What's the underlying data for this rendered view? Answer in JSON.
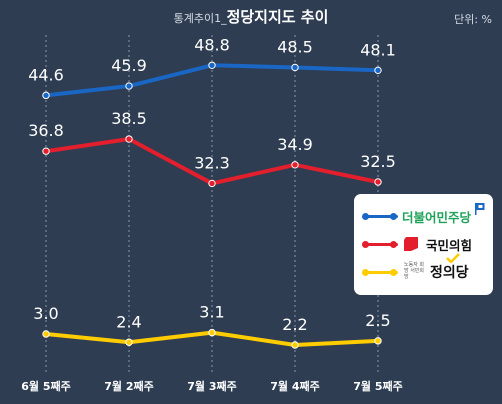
{
  "title_prefix": "통계추이1_",
  "title": "정당지지도 추이",
  "unit_label": "단위: %",
  "chart_data": {
    "type": "line",
    "categories": [
      "6월 5째주",
      "7월 2째주",
      "7월 3째주",
      "7월 4째주",
      "7월 5째주"
    ],
    "ylim": [
      0,
      55
    ],
    "grid": "vertical",
    "legend_position": "right",
    "series": [
      {
        "name": "더불어민주당",
        "color": "#1a66c4",
        "values": [
          44.6,
          45.9,
          48.8,
          48.5,
          48.1
        ],
        "labels": [
          "44.6",
          "45.9",
          "48.8",
          "48.5",
          "48.1"
        ]
      },
      {
        "name": "국민의힘",
        "color": "#e31e2d",
        "values": [
          36.8,
          38.5,
          32.3,
          34.9,
          32.5
        ],
        "labels": [
          "36.8",
          "38.5",
          "32.3",
          "34.9",
          "32.5"
        ]
      },
      {
        "name": "정의당",
        "color": "#ffcc00",
        "values": [
          3.0,
          2.4,
          3.1,
          2.2,
          2.5
        ],
        "labels": [
          "3.0",
          "2.4",
          "3.1",
          "2.2",
          "2.5"
        ]
      }
    ]
  },
  "legend": {
    "items": [
      {
        "name": "더불어민주당",
        "color": "#1a66c4",
        "text_color": "#1fa25a"
      },
      {
        "name": "국민의힘",
        "color": "#e31e2d",
        "text_color": "#111111"
      },
      {
        "name": "정의당",
        "color": "#ffcc00",
        "text_color": "#111111",
        "sub_text": "노동자 희망 서민희망"
      }
    ]
  }
}
